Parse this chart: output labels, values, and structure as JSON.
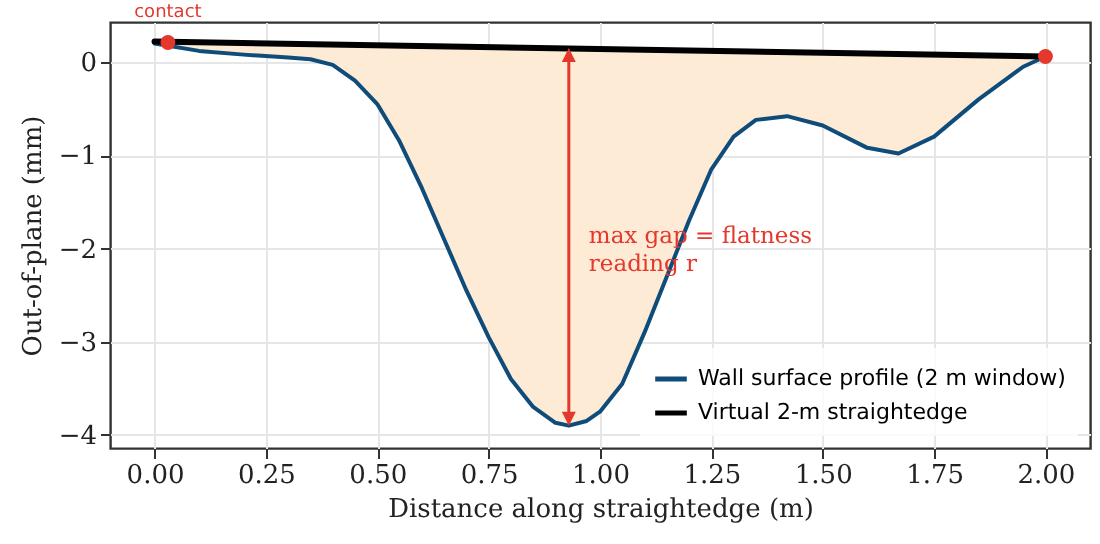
{
  "chart_data": {
    "type": "line",
    "xlabel": "Distance along straightedge (m)",
    "ylabel": "Out-of-plane (mm)",
    "xlim": [
      -0.1,
      2.1
    ],
    "ylim": [
      -4.14,
      0.43
    ],
    "xticks": [
      {
        "value": 0,
        "label": "0.00"
      },
      {
        "value": 0.25,
        "label": "0.25"
      },
      {
        "value": 0.5,
        "label": "0.50"
      },
      {
        "value": 0.75,
        "label": "0.75"
      },
      {
        "value": 1,
        "label": "1.00"
      },
      {
        "value": 1.25,
        "label": "1.25"
      },
      {
        "value": 1.5,
        "label": "1.50"
      },
      {
        "value": 1.75,
        "label": "1.75"
      },
      {
        "value": 2,
        "label": "2.00"
      }
    ],
    "yticks": [
      {
        "value": -4,
        "label": "−4"
      },
      {
        "value": -3,
        "label": "−3"
      },
      {
        "value": -2,
        "label": "−2"
      },
      {
        "value": -1,
        "label": "−1"
      },
      0
    ],
    "grid": true,
    "legend": "bottom right",
    "series": [
      {
        "name": "Wall surface profile (2 m window)",
        "color": "#0f4c7a",
        "x": [
          0,
          0.1,
          0.2,
          0.3,
          0.35,
          0.4,
          0.45,
          0.5,
          0.55,
          0.6,
          0.65,
          0.7,
          0.75,
          0.8,
          0.85,
          0.9,
          0.93,
          0.97,
          1.0,
          1.05,
          1.1,
          1.15,
          1.2,
          1.25,
          1.3,
          1.35,
          1.42,
          1.5,
          1.6,
          1.67,
          1.75,
          1.85,
          1.95,
          2.0
        ],
        "values": [
          0.2,
          0.12,
          0.08,
          0.05,
          0.03,
          -0.03,
          -0.2,
          -0.45,
          -0.85,
          -1.35,
          -1.9,
          -2.45,
          -2.95,
          -3.4,
          -3.7,
          -3.87,
          -3.9,
          -3.85,
          -3.75,
          -3.45,
          -2.9,
          -2.3,
          -1.7,
          -1.15,
          -0.8,
          -0.62,
          -0.58,
          -0.68,
          -0.92,
          -0.98,
          -0.8,
          -0.4,
          -0.05,
          0.06
        ],
        "lower": [
          0.2,
          0.12,
          0.08,
          0.05,
          0.03,
          -0.03,
          -0.2,
          -0.45,
          -0.85,
          -1.35,
          -1.9,
          -2.45,
          -2.95,
          -3.4,
          -3.7,
          -3.87,
          -3.9,
          -3.85,
          -3.75,
          -3.45,
          -2.9,
          -2.3,
          -1.7,
          -1.15,
          -0.8,
          -0.62,
          -0.58,
          -0.68,
          -0.92,
          -0.98,
          -0.8,
          -0.4,
          -0.05,
          0.06
        ],
        "upper": [
          0.22,
          0.21,
          0.2,
          0.2,
          0.19,
          0.19,
          0.18,
          0.18,
          0.18,
          0.17,
          0.17,
          0.16,
          0.16,
          0.16,
          0.15,
          0.15,
          0.15,
          0.14,
          0.14,
          0.14,
          0.13,
          0.13,
          0.12,
          0.12,
          0.12,
          0.11,
          0.11,
          0.1,
          0.09,
          0.09,
          0.08,
          0.07,
          0.06,
          0.06
        ]
      },
      {
        "name": "Virtual 2-m straightedge",
        "color": "#000000",
        "x": [
          0,
          2.0
        ],
        "values": [
          0.22,
          0.06
        ]
      },
      {
        "color": "#e3382b",
        "type": "scatter",
        "marker": "circle",
        "x": [
          0.03,
          2.0
        ],
        "values": [
          0.21,
          0.06
        ]
      }
    ],
    "annotations": [
      {
        "text": "contact",
        "x": 0.03,
        "y": 0.21
      },
      "max gap = flatness reading r"
    ]
  }
}
